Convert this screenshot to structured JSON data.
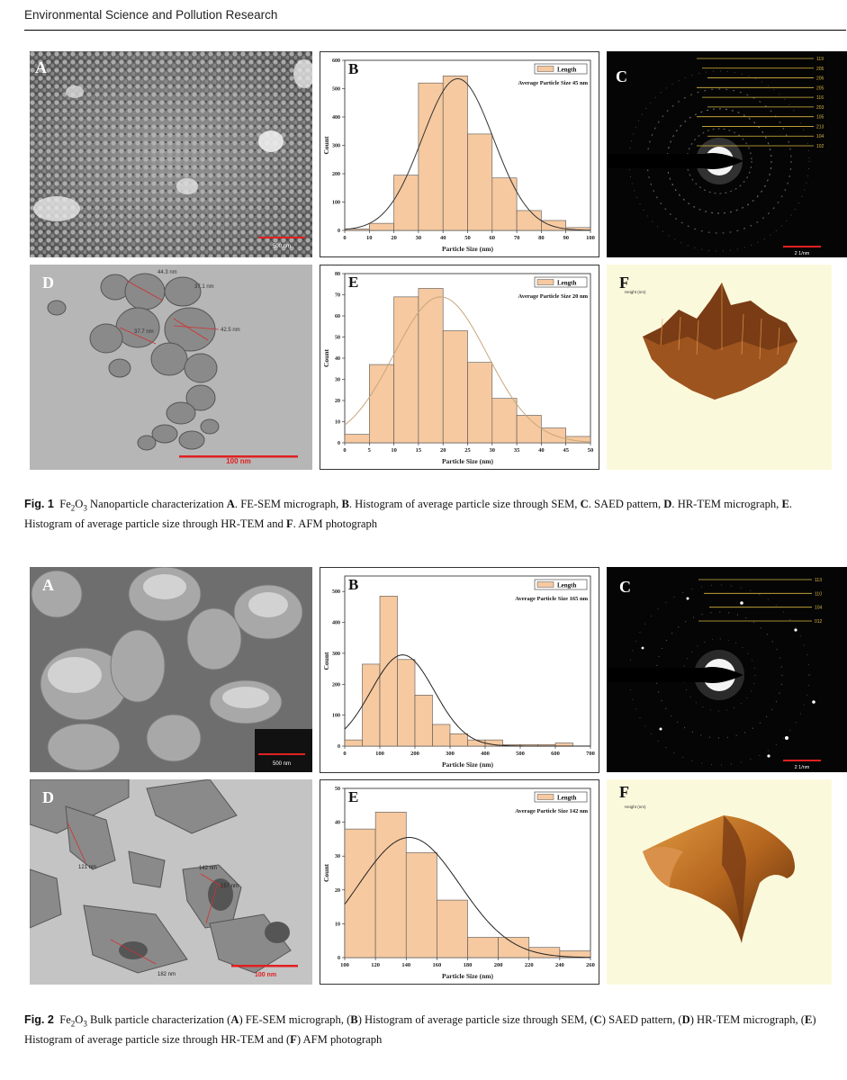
{
  "header": {
    "journal": "Environmental Science and Pollution Research"
  },
  "colors": {
    "bar": "#f6c9a0",
    "bar_edge": "#555555",
    "fit_fig1": "#333333",
    "fit_fig1_E": "#c8a67c",
    "fit_fig2": "#222222",
    "saed_line": "#d9b640"
  },
  "fig1": {
    "caption": {
      "label": "Fig. 1",
      "formula_main": "Fe",
      "sub1": "2",
      "mid": "O",
      "sub2": "3",
      "rest": " Nanoparticle characterization ",
      "items": [
        {
          "letter": "A",
          "text": ". FE-SEM micrograph, "
        },
        {
          "letter": "B",
          "text": ". Histogram of average particle size through SEM, "
        },
        {
          "letter": "C",
          "text": ". SAED pattern, "
        },
        {
          "letter": "D",
          "text": ". HR-TEM micrograph, "
        },
        {
          "letter": "E",
          "text": ". Histogram of average particle size through HR-TEM and "
        },
        {
          "letter": "F",
          "text": ". AFM photograph"
        }
      ]
    },
    "panels": {
      "A": {
        "letter": "A",
        "scale": "500 nm"
      },
      "C": {
        "letter": "C",
        "scale": "2 1/nm",
        "rings": [
          "119",
          "205",
          "206",
          "205",
          "116",
          "203",
          "105",
          "213",
          "104",
          "102"
        ]
      },
      "D": {
        "letter": "D",
        "scale": "100 nm",
        "labels": [
          "44.3 nm",
          "37.1 nm",
          "42.5 nm",
          "37.7 nm"
        ]
      },
      "F": {
        "letter": "F",
        "axis_label": "Height (nm)"
      }
    }
  },
  "fig2": {
    "caption": {
      "label": "Fig. 2",
      "formula_main": "Fe",
      "sub1": "2",
      "mid": "O",
      "sub2": "3",
      "rest": " Bulk particle characterization (",
      "items": [
        {
          "letter": "A",
          "text": ") FE-SEM micrograph, ("
        },
        {
          "letter": "B",
          "text": ") Histogram of average particle size through SEM, ("
        },
        {
          "letter": "C",
          "text": ") SAED pattern, ("
        },
        {
          "letter": "D",
          "text": ") HR-TEM micrograph, ("
        },
        {
          "letter": "E",
          "text": ") Histogram of average particle size through HR-TEM and ("
        },
        {
          "letter": "F",
          "text": ") AFM photograph"
        }
      ]
    },
    "panels": {
      "A": {
        "letter": "A",
        "scale": "500 nm"
      },
      "C": {
        "letter": "C",
        "scale": "2 1/nm",
        "rings": [
          "113",
          "110",
          "104",
          "012"
        ]
      },
      "D": {
        "letter": "D",
        "scale": "100 nm",
        "labels": [
          "121 nm",
          "142 nm",
          "157 nm",
          "182 nm"
        ]
      },
      "F": {
        "letter": "F",
        "axis_label": "Height (nm)"
      }
    }
  },
  "chart_data": [
    {
      "id": "fig1B",
      "type": "bar",
      "panel_letter": "B",
      "xlabel": "Particle Size (nm)",
      "ylabel": "Count",
      "legend": "Length",
      "annotation": "Average Particle Size 45 nm",
      "xlim": [
        0,
        100
      ],
      "ylim": [
        0,
        600
      ],
      "xticks": [
        0,
        10,
        20,
        30,
        40,
        50,
        60,
        70,
        80,
        90,
        100
      ],
      "yticks": [
        0,
        100,
        200,
        300,
        400,
        500,
        600
      ],
      "bin_edges": [
        0,
        10,
        20,
        30,
        40,
        50,
        60,
        70,
        80,
        90,
        100
      ],
      "values": [
        5,
        25,
        195,
        520,
        545,
        340,
        185,
        70,
        35,
        10
      ],
      "fit": {
        "type": "normal",
        "mean": 46,
        "sd": 14.5,
        "peak": 535
      }
    },
    {
      "id": "fig1E",
      "type": "bar",
      "panel_letter": "E",
      "xlabel": "Particle Size (nm)",
      "ylabel": "Count",
      "legend": "Length",
      "annotation": "Average Particle Size 20 nm",
      "xlim": [
        0,
        50
      ],
      "ylim": [
        0,
        80
      ],
      "xticks": [
        0,
        5,
        10,
        15,
        20,
        25,
        30,
        35,
        40,
        45,
        50
      ],
      "yticks": [
        0,
        10,
        20,
        30,
        40,
        50,
        60,
        70,
        80
      ],
      "bin_edges": [
        0,
        5,
        10,
        15,
        20,
        25,
        30,
        35,
        40,
        45,
        50
      ],
      "values": [
        4,
        37,
        69,
        73,
        53,
        38,
        21,
        13,
        7,
        3
      ],
      "fit": {
        "type": "normal",
        "mean": 19.5,
        "sd": 9.5,
        "peak": 69
      }
    },
    {
      "id": "fig2B",
      "type": "bar",
      "panel_letter": "B",
      "xlabel": "Particle Size (nm)",
      "ylabel": "Count",
      "legend": "Length",
      "annotation": "Average Particle Size 165 nm",
      "xlim": [
        0,
        700
      ],
      "ylim": [
        0,
        550
      ],
      "xticks": [
        0,
        100,
        200,
        300,
        400,
        500,
        600,
        700
      ],
      "yticks": [
        0,
        100,
        200,
        300,
        400,
        500
      ],
      "bin_edges": [
        0,
        50,
        100,
        150,
        200,
        250,
        300,
        350,
        400,
        450,
        500,
        550,
        600,
        650,
        700
      ],
      "values": [
        20,
        265,
        485,
        280,
        165,
        70,
        40,
        20,
        20,
        5,
        5,
        5,
        10,
        0
      ],
      "fit": {
        "type": "normal",
        "mean": 165,
        "sd": 90,
        "peak": 295
      }
    },
    {
      "id": "fig2E",
      "type": "bar",
      "panel_letter": "E",
      "xlabel": "Particle Size (nm)",
      "ylabel": "Count",
      "legend": "Length",
      "annotation": "Average Particle Size 142 nm",
      "xlim": [
        100,
        260
      ],
      "ylim": [
        0,
        50
      ],
      "xticks": [
        100,
        120,
        140,
        160,
        180,
        200,
        220,
        240,
        260
      ],
      "yticks": [
        0,
        10,
        20,
        30,
        40,
        50
      ],
      "bin_edges": [
        100,
        120,
        140,
        160,
        180,
        200,
        220,
        240,
        260
      ],
      "values": [
        38,
        43,
        31,
        17,
        6,
        6,
        3,
        2
      ],
      "fit": {
        "type": "normal",
        "mean": 142,
        "sd": 33,
        "peak": 35.5
      }
    }
  ]
}
